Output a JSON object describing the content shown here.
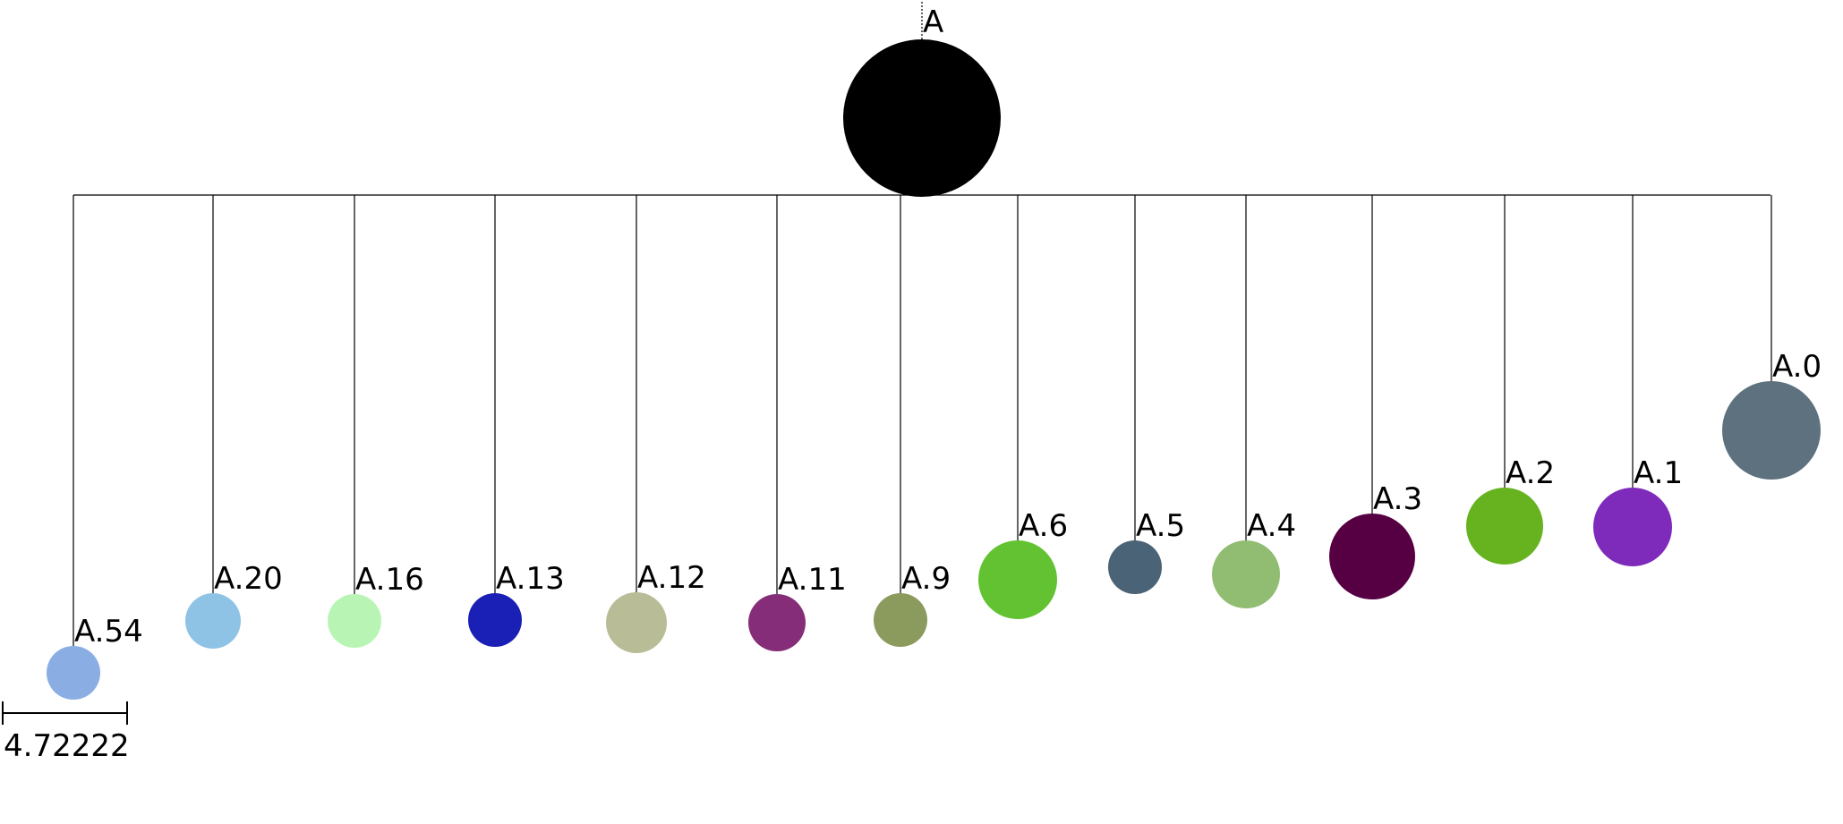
{
  "tree": {
    "root": {
      "label": "A",
      "color": "#000000"
    },
    "children": [
      {
        "label": "A.54",
        "color": "#8aaee4"
      },
      {
        "label": "A.20",
        "color": "#8ec3e6"
      },
      {
        "label": "A.16",
        "color": "#b8f5b5"
      },
      {
        "label": "A.13",
        "color": "#1a1fb5"
      },
      {
        "label": "A.12",
        "color": "#b9bd97"
      },
      {
        "label": "A.11",
        "color": "#852d79"
      },
      {
        "label": "A.9",
        "color": "#8b9a5d"
      },
      {
        "label": "A.6",
        "color": "#63c232"
      },
      {
        "label": "A.5",
        "color": "#4b6377"
      },
      {
        "label": "A.4",
        "color": "#91bd72"
      },
      {
        "label": "A.3",
        "color": "#560043"
      },
      {
        "label": "A.2",
        "color": "#66b21f"
      },
      {
        "label": "A.1",
        "color": "#7e2bbb"
      },
      {
        "label": "A.0",
        "color": "#5e717e"
      }
    ]
  },
  "scale_bar": {
    "label": "4.72222"
  }
}
